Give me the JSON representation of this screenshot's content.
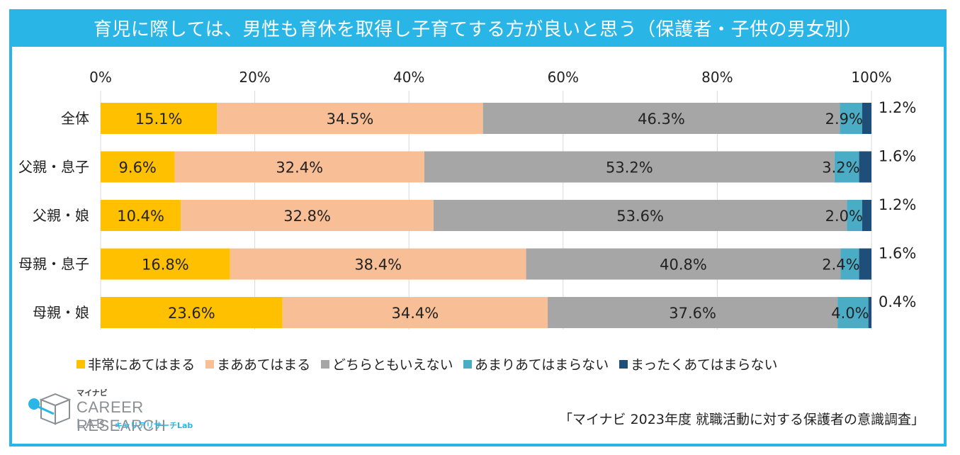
{
  "title": "育児に際しては、男性も育休を取得し子育てする方が良いと思う（保護者・子供の男女別）",
  "source_note": "「マイナビ 2023年度 就職活動に対する保護者の意識調査」",
  "logo": {
    "small": "マイナビ",
    "line1": "CAREER RESEARCH",
    "line2": "LAB",
    "kana": "キャリアリサーチLab"
  },
  "colors": {
    "frame": "#29b6e6",
    "series": [
      "#ffc000",
      "#f8bf96",
      "#a6a6a6",
      "#4bacc6",
      "#1f4e79"
    ]
  },
  "chart_data": {
    "type": "bar",
    "orientation": "horizontal",
    "stacked": true,
    "title": "育児に際しては、男性も育休を取得し子育てする方が良いと思う（保護者・子供の男女別）",
    "categories": [
      "全体",
      "父親・息子",
      "父親・娘",
      "母親・息子",
      "母親・娘"
    ],
    "x_ticks": [
      "0%",
      "20%",
      "40%",
      "60%",
      "80%",
      "100%"
    ],
    "xlim": [
      0,
      100
    ],
    "grid": true,
    "legend_position": "bottom",
    "series": [
      {
        "name": "非常にあてはまる",
        "values": [
          15.1,
          9.6,
          10.4,
          16.8,
          23.6
        ],
        "labels": [
          "15.1%",
          "9.6%",
          "10.4%",
          "16.8%",
          "23.6%"
        ]
      },
      {
        "name": "まああてはまる",
        "values": [
          34.5,
          32.4,
          32.8,
          38.4,
          34.4
        ],
        "labels": [
          "34.5%",
          "32.4%",
          "32.8%",
          "38.4%",
          "34.4%"
        ]
      },
      {
        "name": "どちらともいえない",
        "values": [
          46.3,
          53.2,
          53.6,
          40.8,
          37.6
        ],
        "labels": [
          "46.3%",
          "53.2%",
          "53.6%",
          "40.8%",
          "37.6%"
        ]
      },
      {
        "name": "あまりあてはまらない",
        "values": [
          2.9,
          3.2,
          2.0,
          2.4,
          4.0
        ],
        "labels": [
          "2.9%",
          "3.2%",
          "2.0%",
          "2.4%",
          "4.0%"
        ]
      },
      {
        "name": "まったくあてはまらない",
        "values": [
          1.2,
          1.6,
          1.2,
          1.6,
          0.4
        ],
        "labels": [
          "1.2%",
          "1.6%",
          "1.2%",
          "1.6%",
          "0.4%"
        ]
      }
    ]
  }
}
